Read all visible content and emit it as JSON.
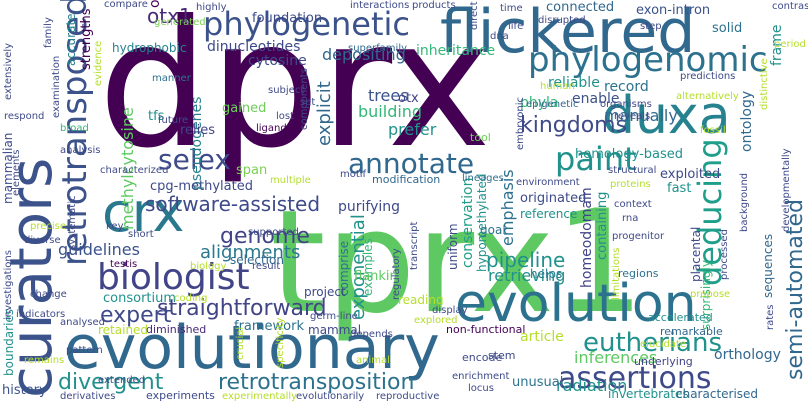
{
  "colors": {
    "background": "#ffffff",
    "palette": [
      "#440154",
      "#482878",
      "#3e4a89",
      "#31688e",
      "#26828e",
      "#1f9e89",
      "#35b779",
      "#6ece58",
      "#b5de2b",
      "#fde725"
    ]
  },
  "words": [
    {
      "text": "dprx",
      "color": "#440154"
    },
    {
      "text": "tprx1",
      "color": "#5ec962"
    },
    {
      "text": "curators",
      "color": "#3b528b"
    },
    {
      "text": "flickered",
      "color": "#31688e"
    },
    {
      "text": "evolutionary",
      "color": "#31688e"
    },
    {
      "text": "evolution",
      "color": "#2c728e"
    },
    {
      "text": "phylogenomic",
      "color": "#2c728e"
    },
    {
      "text": "phylogenetic",
      "color": "#3b528b"
    },
    {
      "text": "duxa",
      "color": "#26828e"
    },
    {
      "text": "biologist",
      "color": "#414487"
    },
    {
      "text": "retrotransposed",
      "color": "#3b528b"
    },
    {
      "text": "crx",
      "color": "#2a788e"
    },
    {
      "text": "assertions",
      "color": "#3e4a89"
    },
    {
      "text": "annotate",
      "color": "#31688e"
    },
    {
      "text": "paint",
      "color": "#21918c"
    },
    {
      "text": "deducing",
      "color": "#1f9e89"
    },
    {
      "text": "selex",
      "color": "#3e4a89"
    },
    {
      "text": "eutherians",
      "color": "#21918c"
    },
    {
      "text": "retrotransposition",
      "color": "#2c728e"
    },
    {
      "text": "straightforward",
      "color": "#414487"
    },
    {
      "text": "semi-automated",
      "color": "#31688e"
    },
    {
      "text": "kingdoms",
      "color": "#3e4a89"
    },
    {
      "text": "genome",
      "color": "#414487"
    },
    {
      "text": "divergent",
      "color": "#21918c"
    },
    {
      "text": "expert",
      "color": "#3e4a89"
    },
    {
      "text": "otx1",
      "color": "#482878"
    },
    {
      "text": "methylcytosine",
      "color": "#5ec962"
    },
    {
      "text": "software-assisted",
      "color": "#3e4a89"
    },
    {
      "text": "alignments",
      "color": "#2a788e"
    },
    {
      "text": "exponential",
      "color": "#21918c"
    },
    {
      "text": "explicit",
      "color": "#31688e"
    },
    {
      "text": "pipeline",
      "color": "#21918c"
    },
    {
      "text": "inferences",
      "color": "#5ec962"
    },
    {
      "text": "building",
      "color": "#35b779"
    },
    {
      "text": "trees",
      "color": "#3b528b"
    },
    {
      "text": "manually",
      "color": "#31688e"
    },
    {
      "text": "record",
      "color": "#2c728e"
    },
    {
      "text": "phyla",
      "color": "#35b779"
    },
    {
      "text": "prefer",
      "color": "#21918c"
    },
    {
      "text": "guidelines",
      "color": "#3b528b"
    },
    {
      "text": "depositing",
      "color": "#31688e"
    },
    {
      "text": "dinucleotides",
      "color": "#3e4a89"
    },
    {
      "text": "cytosine",
      "color": "#3e4a89"
    },
    {
      "text": "pseudogenes",
      "color": "#26828e"
    },
    {
      "text": "cpg-methylated",
      "color": "#3e4a89"
    },
    {
      "text": "tfs",
      "color": "#21918c"
    },
    {
      "text": "relies",
      "color": "#414487"
    },
    {
      "text": "gained",
      "color": "#6ece58"
    },
    {
      "text": "span",
      "color": "#7ad151"
    },
    {
      "text": "retrieving",
      "color": "#21918c"
    },
    {
      "text": "conservation",
      "color": "#1f9e89"
    },
    {
      "text": "hypomethylated",
      "color": "#21918c"
    },
    {
      "text": "emphasis",
      "color": "#2c728e"
    },
    {
      "text": "uniform",
      "color": "#3e4a89"
    },
    {
      "text": "homology-based",
      "color": "#21918c"
    },
    {
      "text": "homeodomain",
      "color": "#414487"
    },
    {
      "text": "orthology",
      "color": "#31688e"
    },
    {
      "text": "ontology",
      "color": "#31688e"
    },
    {
      "text": "history",
      "color": "#3b528b"
    },
    {
      "text": "mammalian",
      "color": "#3e4a89"
    },
    {
      "text": "consortium",
      "color": "#21918c"
    },
    {
      "text": "framework",
      "color": "#2c728e"
    },
    {
      "text": "mammal",
      "color": "#3e4a89"
    },
    {
      "text": "selection",
      "color": "#31688e"
    },
    {
      "text": "purifying",
      "color": "#3e4a89"
    },
    {
      "text": "otx",
      "color": "#414487"
    },
    {
      "text": "otx2",
      "color": "#440154"
    },
    {
      "text": "inheritance",
      "color": "#35b779"
    },
    {
      "text": "foundation",
      "color": "#3e4a89"
    },
    {
      "text": "superfamily",
      "color": "#31688e"
    },
    {
      "text": "hydrophobic",
      "color": "#26828e"
    },
    {
      "text": "accurate",
      "color": "#26828e"
    },
    {
      "text": "strengths",
      "color": "#440154"
    },
    {
      "text": "connected",
      "color": "#31688e"
    },
    {
      "text": "exon-intron",
      "color": "#3b528b"
    },
    {
      "text": "solid",
      "color": "#2c728e"
    },
    {
      "text": "examples",
      "color": "#35b779"
    },
    {
      "text": "comprise",
      "color": "#2c728e"
    },
    {
      "text": "reading",
      "color": "#b5de2b"
    },
    {
      "text": "helps",
      "color": "#2a788e"
    },
    {
      "text": "goal",
      "color": "#2c728e"
    },
    {
      "text": "fast",
      "color": "#21918c"
    },
    {
      "text": "exploited",
      "color": "#3e4a89"
    },
    {
      "text": "originated",
      "color": "#3e4a89"
    },
    {
      "text": "reference",
      "color": "#21918c"
    },
    {
      "text": "placental",
      "color": "#3e4a89"
    },
    {
      "text": "containing",
      "color": "#21918c"
    },
    {
      "text": "surprisingly",
      "color": "#35b779"
    },
    {
      "text": "sequences",
      "color": "#31688e"
    },
    {
      "text": "reliable",
      "color": "#21918c"
    },
    {
      "text": "enable",
      "color": "#3b528b"
    },
    {
      "text": "flanking",
      "color": "#5ec962"
    },
    {
      "text": "project",
      "color": "#3e4a89"
    },
    {
      "text": "article",
      "color": "#b5de2b"
    },
    {
      "text": "radiation",
      "color": "#21918c"
    },
    {
      "text": "invertebrates",
      "color": "#21918c"
    },
    {
      "text": "characterised",
      "color": "#31688e"
    },
    {
      "text": "unusual",
      "color": "#2c728e"
    },
    {
      "text": "frame",
      "color": "#21918c"
    },
    {
      "text": "remarkable",
      "color": "#31688e"
    },
    {
      "text": "non-functional",
      "color": "#440154"
    },
    {
      "text": "boundaries",
      "color": "#21918c"
    },
    {
      "text": "retained",
      "color": "#b5de2b"
    },
    {
      "text": "diminished",
      "color": "#482878"
    },
    {
      "text": "experiments",
      "color": "#3e4a89"
    },
    {
      "text": "encode",
      "color": "#3e4a89"
    },
    {
      "text": "tool",
      "color": "#6ece58"
    },
    {
      "text": "regions",
      "color": "#2c728e"
    },
    {
      "text": "accelerated",
      "color": "#21918c"
    },
    {
      "text": "underlying",
      "color": "#414487"
    },
    {
      "text": "stem",
      "color": "#3e4a89"
    },
    {
      "text": "modification",
      "color": "#31688e"
    },
    {
      "text": "lineages",
      "color": "#2c728e"
    },
    {
      "text": "compare",
      "color": "#3e4a89"
    },
    {
      "text": "highly",
      "color": "#3e4a89"
    },
    {
      "text": "products",
      "color": "#3e4a89"
    },
    {
      "text": "interactions",
      "color": "#3e4a89"
    },
    {
      "text": "disrupted",
      "color": "#3e4a89"
    },
    {
      "text": "time",
      "color": "#3e4a89"
    },
    {
      "text": "generated",
      "color": "#7ad151"
    },
    {
      "text": "life",
      "color": "#3e4a89"
    },
    {
      "text": "step",
      "color": "#3e4a89"
    },
    {
      "text": "contrast",
      "color": "#3e4a89"
    },
    {
      "text": "manner",
      "color": "#2c728e"
    },
    {
      "text": "subject",
      "color": "#3e4a89"
    },
    {
      "text": "future",
      "color": "#3e4a89"
    },
    {
      "text": "lost",
      "color": "#3e4a89"
    },
    {
      "text": "ligands",
      "color": "#440154"
    },
    {
      "text": "set",
      "color": "#3e4a89"
    },
    {
      "text": "human",
      "color": "#b5de2b"
    },
    {
      "text": "epigenetic",
      "color": "#31688e"
    },
    {
      "text": "organisms",
      "color": "#3e4a89"
    },
    {
      "text": "reveals",
      "color": "#3e4a89"
    },
    {
      "text": "predictions",
      "color": "#3e4a89"
    },
    {
      "text": "alternatively",
      "color": "#b5de2b"
    },
    {
      "text": "broad",
      "color": "#35b779"
    },
    {
      "text": "respond",
      "color": "#3e4a89"
    },
    {
      "text": "analysis",
      "color": "#3e4a89"
    },
    {
      "text": "characterized",
      "color": "#3e4a89"
    },
    {
      "text": "structural",
      "color": "#3e4a89"
    },
    {
      "text": "proteins",
      "color": "#b5de2b"
    },
    {
      "text": "environment",
      "color": "#3e4a89"
    },
    {
      "text": "motif",
      "color": "#3e4a89"
    },
    {
      "text": "multiple",
      "color": "#b5de2b"
    },
    {
      "text": "supported",
      "color": "#3e4a89"
    },
    {
      "text": "key",
      "color": "#3e4a89"
    },
    {
      "text": "short",
      "color": "#3e4a89"
    },
    {
      "text": "testis",
      "color": "#440154"
    },
    {
      "text": "biology",
      "color": "#b5de2b"
    },
    {
      "text": "result",
      "color": "#3e4a89"
    },
    {
      "text": "display",
      "color": "#3e4a89"
    },
    {
      "text": "coding",
      "color": "#b5de2b"
    },
    {
      "text": "explored",
      "color": "#b5de2b"
    },
    {
      "text": "germ-line",
      "color": "#3e4a89"
    },
    {
      "text": "depends",
      "color": "#3e4a89"
    },
    {
      "text": "animal",
      "color": "#b5de2b"
    },
    {
      "text": "evolutionarily",
      "color": "#3e4a89"
    },
    {
      "text": "experimentally",
      "color": "#b5de2b"
    },
    {
      "text": "reproductive",
      "color": "#3e4a89"
    },
    {
      "text": "enrichment",
      "color": "#3e4a89"
    },
    {
      "text": "locus",
      "color": "#3e4a89"
    },
    {
      "text": "extended",
      "color": "#3e4a89"
    },
    {
      "text": "derivatives",
      "color": "#3e4a89"
    },
    {
      "text": "pattern",
      "color": "#3e4a89"
    },
    {
      "text": "indicators",
      "color": "#3e4a89"
    },
    {
      "text": "change",
      "color": "#3e4a89"
    },
    {
      "text": "analysed",
      "color": "#3e4a89"
    },
    {
      "text": "diverse",
      "color": "#3e4a89"
    },
    {
      "text": "precise",
      "color": "#b5de2b"
    },
    {
      "text": "systematic",
      "color": "#3e4a89"
    },
    {
      "text": "elements",
      "color": "#3e4a89"
    },
    {
      "text": "progenitor",
      "color": "#3e4a89"
    },
    {
      "text": "processed",
      "color": "#3e4a89"
    },
    {
      "text": "background",
      "color": "#3e4a89"
    },
    {
      "text": "developmentally",
      "color": "#3e4a89"
    },
    {
      "text": "period",
      "color": "#b5de2b"
    },
    {
      "text": "rates",
      "color": "#3e4a89"
    },
    {
      "text": "propose",
      "color": "#b5de2b"
    },
    {
      "text": "limitations",
      "color": "#b5de2b"
    },
    {
      "text": "elucidate",
      "color": "#b5de2b"
    },
    {
      "text": "specificity",
      "color": "#b5de2b"
    },
    {
      "text": "remains",
      "color": "#b5de2b"
    },
    {
      "text": "crucial",
      "color": "#b5de2b"
    },
    {
      "text": "context",
      "color": "#3e4a89"
    },
    {
      "text": "rna",
      "color": "#3e4a89"
    },
    {
      "text": "regulatory",
      "color": "#3e4a89"
    },
    {
      "text": "transcript",
      "color": "#3e4a89"
    },
    {
      "text": "components",
      "color": "#3e4a89"
    },
    {
      "text": "direct",
      "color": "#3e4a89"
    },
    {
      "text": "dna",
      "color": "#3e4a89"
    },
    {
      "text": "examination",
      "color": "#3e4a89"
    },
    {
      "text": "extensively",
      "color": "#3e4a89"
    },
    {
      "text": "investigations",
      "color": "#3e4a89"
    },
    {
      "text": "evidence",
      "color": "#b5de2b"
    },
    {
      "text": "embryonic",
      "color": "#3e4a89"
    },
    {
      "text": "family",
      "color": "#3e4a89"
    },
    {
      "text": "distinctive",
      "color": "#b5de2b"
    },
    {
      "text": "fossil",
      "color": "#b5de2b"
    }
  ]
}
